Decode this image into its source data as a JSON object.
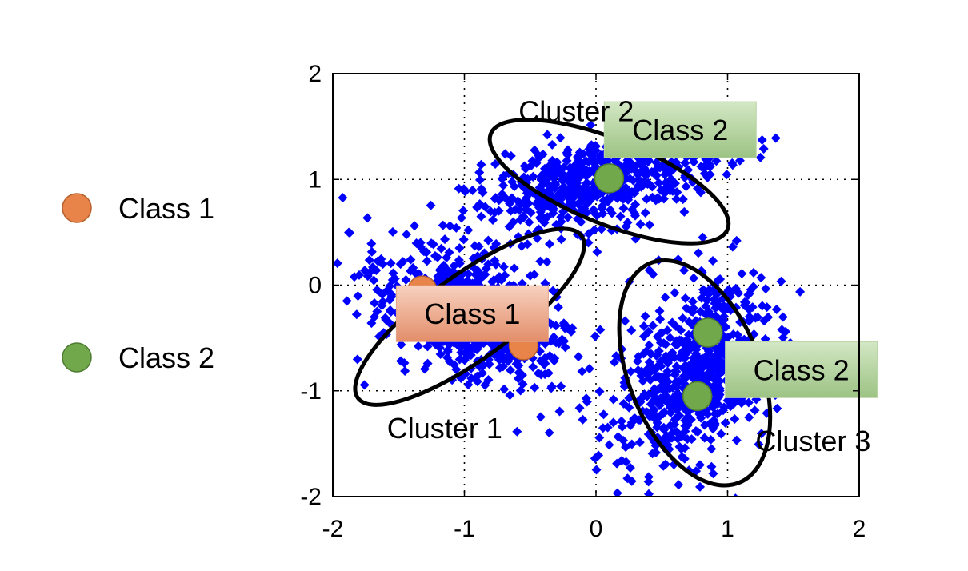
{
  "legend": {
    "items": [
      {
        "label": "Class 1",
        "color": "#e8844a",
        "stroke": "#b5602d"
      },
      {
        "label": "Class 2",
        "color": "#72a84c",
        "stroke": "#4e7a31"
      }
    ]
  },
  "chart_data": {
    "type": "scatter",
    "title": "",
    "xlabel": "",
    "ylabel": "",
    "xlim": [
      -2,
      2
    ],
    "ylim": [
      -2,
      2
    ],
    "x_ticks": [
      -2,
      -1,
      0,
      1,
      2
    ],
    "y_ticks": [
      -2,
      -1,
      0,
      1,
      2
    ],
    "x_tick_labels": [
      "-2",
      "-1",
      "0",
      "1",
      "2"
    ],
    "y_tick_labels": [
      "-2",
      "-1",
      "0",
      "1",
      "2"
    ],
    "grid": "dotted",
    "point_color": "#0000ff",
    "point_marker": "diamond",
    "clusters": [
      {
        "name": "Cluster 1",
        "center": [
          -0.95,
          -0.3
        ],
        "spread": [
          0.42,
          0.25
        ],
        "tilt_deg": -38,
        "count": 700,
        "ellipse": {
          "cx": -0.96,
          "cy": -0.3,
          "rx": 1.05,
          "ry": 0.4,
          "tilt_deg": -36
        }
      },
      {
        "name": "Cluster 2",
        "center": [
          0.0,
          0.98
        ],
        "spread": [
          0.48,
          0.2
        ],
        "tilt_deg": 20,
        "count": 650,
        "ellipse": {
          "cx": 0.1,
          "cy": 0.98,
          "rx": 0.97,
          "ry": 0.4,
          "tilt_deg": 22
        }
      },
      {
        "name": "Cluster 3",
        "center": [
          0.75,
          -0.8
        ],
        "spread": [
          0.25,
          0.48
        ],
        "tilt_deg": -20,
        "count": 650,
        "ellipse": {
          "cx": 0.75,
          "cy": -0.83,
          "rx": 0.5,
          "ry": 1.12,
          "tilt_deg": -22
        }
      }
    ],
    "cluster_labels": [
      {
        "text": "Cluster 2",
        "x": -0.15,
        "y": 1.65
      },
      {
        "text": "Cluster 1",
        "x": -1.15,
        "y": -1.35
      },
      {
        "text": "Cluster 3",
        "x": 1.65,
        "y": -1.47
      }
    ],
    "class_points": [
      {
        "class": "Class 1",
        "x": -1.32,
        "y": -0.05
      },
      {
        "class": "Class 1",
        "x": -0.55,
        "y": -0.57
      },
      {
        "class": "Class 2",
        "x": 0.1,
        "y": 1.01
      },
      {
        "class": "Class 2",
        "x": 0.85,
        "y": -0.45
      },
      {
        "class": "Class 2",
        "x": 0.77,
        "y": -1.05
      }
    ],
    "class_label_boxes": [
      {
        "text": "Class 2",
        "class": "Class 2",
        "x": 0.64,
        "y": 1.47
      },
      {
        "text": "Class 1",
        "class": "Class 1",
        "x": -0.94,
        "y": -0.27
      },
      {
        "text": "Class 2",
        "class": "Class 2",
        "x": 1.56,
        "y": -0.8
      }
    ]
  }
}
